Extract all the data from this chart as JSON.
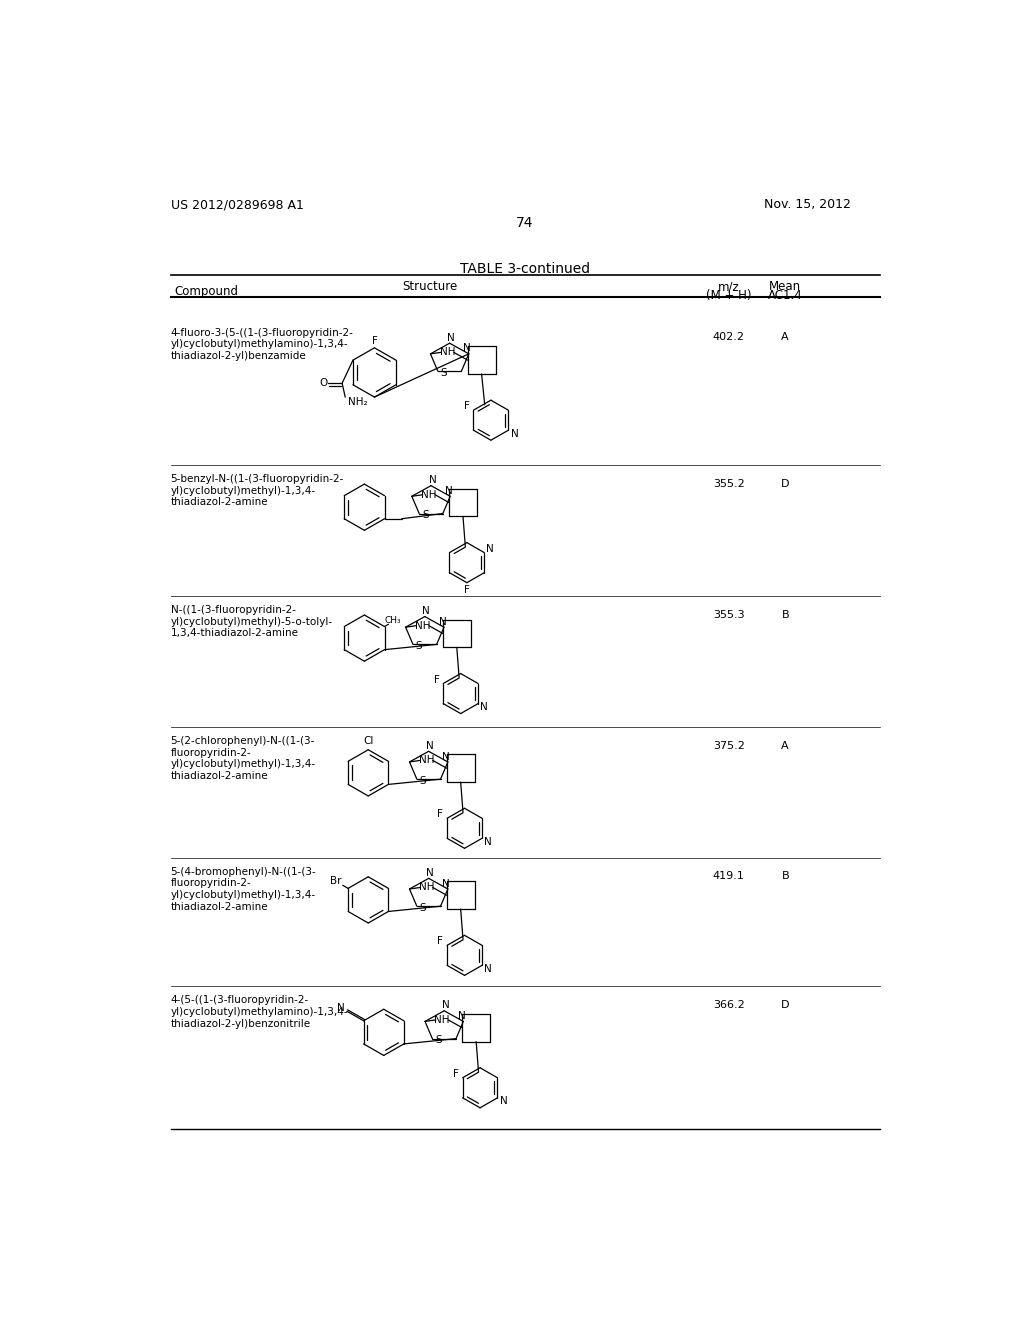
{
  "page_number": "74",
  "patent_number": "US 2012/0289698 A1",
  "patent_date": "Nov. 15, 2012",
  "table_title": "TABLE 3-continued",
  "col_headers": [
    "Compound",
    "Structure",
    "m/z\n(M + H)",
    "Mean\nAC1.4"
  ],
  "rows": [
    {
      "compound": "4-fluoro-3-(5-((1-(3-fluoropyridin-2-\nyl)cyclobutyl)methylamino)-1,3,4-\nthiadiazol-2-yl)benzamide",
      "mz": "402.2",
      "mean": "A"
    },
    {
      "compound": "5-benzyl-N-((1-(3-fluoropyridin-2-\nyl)cyclobutyl)methyl)-1,3,4-\nthiadiazol-2-amine",
      "mz": "355.2",
      "mean": "D"
    },
    {
      "compound": "N-((1-(3-fluoropyridin-2-\nyl)cyclobutyl)methyl)-5-o-tolyl-\n1,3,4-thiadiazol-2-amine",
      "mz": "355.3",
      "mean": "B"
    },
    {
      "compound": "5-(2-chlorophenyl)-N-((1-(3-\nfluoropyridin-2-\nyl)cyclobutyl)methyl)-1,3,4-\nthiadiazol-2-amine",
      "mz": "375.2",
      "mean": "A"
    },
    {
      "compound": "5-(4-bromophenyl)-N-((1-(3-\nfluoropyridin-2-\nyl)cyclobutyl)methyl)-1,3,4-\nthiadiazol-2-amine",
      "mz": "419.1",
      "mean": "B"
    },
    {
      "compound": "4-(5-((1-(3-fluoropyridin-2-\nyl)cyclobutyl)methylamino)-1,3,4-\nthiadiazol-2-yl)benzonitrile",
      "mz": "366.2",
      "mean": "D"
    }
  ],
  "background_color": "#ffffff",
  "text_color": "#000000",
  "row_tops_doc": [
    208,
    398,
    568,
    738,
    908,
    1075
  ],
  "row_heights_doc": [
    185,
    165,
    165,
    165,
    165,
    185
  ]
}
